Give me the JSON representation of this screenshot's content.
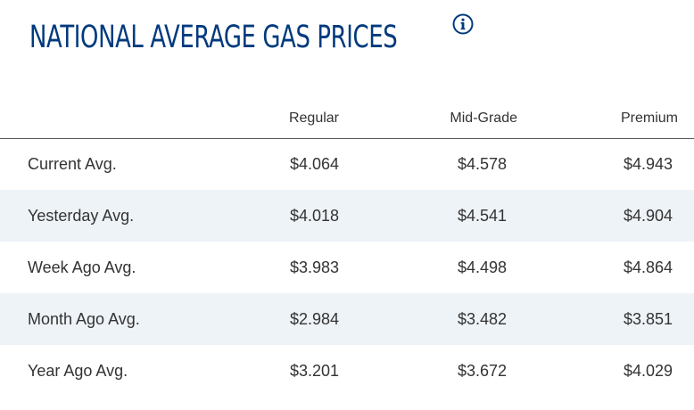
{
  "title": "NATIONAL AVERAGE GAS PRICES",
  "info_icon": "info-circle-icon",
  "colors": {
    "title": "#003a7d",
    "row_shade": "#eef3f8",
    "text": "#333333"
  },
  "table": {
    "headers": [
      "",
      "Regular",
      "Mid-Grade",
      "Premium"
    ],
    "rows": [
      {
        "label": "Current Avg.",
        "regular": "$4.064",
        "mid_grade": "$4.578",
        "premium": "$4.943"
      },
      {
        "label": "Yesterday Avg.",
        "regular": "$4.018",
        "mid_grade": "$4.541",
        "premium": "$4.904"
      },
      {
        "label": "Week Ago Avg.",
        "regular": "$3.983",
        "mid_grade": "$4.498",
        "premium": "$4.864"
      },
      {
        "label": "Month Ago Avg.",
        "regular": "$2.984",
        "mid_grade": "$3.482",
        "premium": "$3.851"
      },
      {
        "label": "Year Ago Avg.",
        "regular": "$3.201",
        "mid_grade": "$3.672",
        "premium": "$4.029"
      }
    ]
  }
}
